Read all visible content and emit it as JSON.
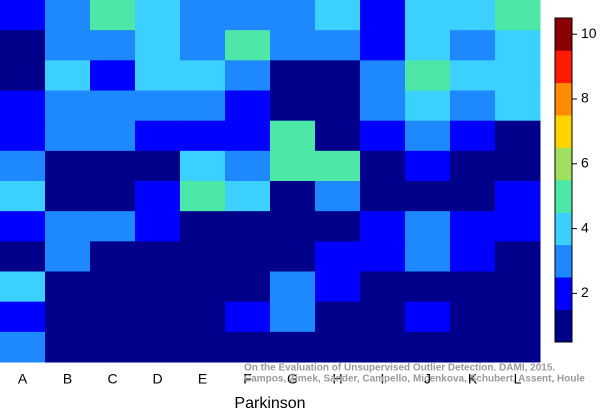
{
  "chart_data": {
    "type": "heatmap",
    "categories": [
      "A",
      "B",
      "C",
      "D",
      "E",
      "F",
      "G",
      "H",
      "I",
      "J",
      "K",
      "L"
    ],
    "values": [
      [
        2,
        3,
        5,
        4,
        3,
        3,
        3,
        4,
        2,
        4,
        4,
        5
      ],
      [
        1,
        3,
        3,
        4,
        3,
        5,
        3,
        3,
        2,
        4,
        3,
        4
      ],
      [
        1,
        4,
        2,
        4,
        4,
        3,
        1,
        1,
        3,
        5,
        4,
        4
      ],
      [
        2,
        3,
        3,
        3,
        3,
        2,
        1,
        1,
        3,
        4,
        3,
        4
      ],
      [
        2,
        3,
        3,
        2,
        2,
        2,
        5,
        1,
        2,
        3,
        2,
        1
      ],
      [
        3,
        1,
        1,
        1,
        4,
        3,
        5,
        5,
        1,
        2,
        1,
        1
      ],
      [
        4,
        1,
        1,
        2,
        5,
        4,
        1,
        3,
        1,
        1,
        1,
        2
      ],
      [
        2,
        3,
        3,
        2,
        1,
        1,
        1,
        1,
        2,
        3,
        2,
        2
      ],
      [
        1,
        3,
        1,
        1,
        1,
        1,
        1,
        2,
        2,
        3,
        2,
        1
      ],
      [
        4,
        1,
        1,
        1,
        1,
        1,
        3,
        2,
        1,
        1,
        1,
        1
      ],
      [
        2,
        1,
        1,
        1,
        1,
        2,
        3,
        1,
        1,
        2,
        1,
        1
      ],
      [
        3,
        1,
        1,
        1,
        1,
        1,
        1,
        1,
        1,
        1,
        1,
        1
      ]
    ],
    "zlim": [
      1,
      10
    ],
    "colors": [
      "#00008b",
      "#0000ff",
      "#1e88ff",
      "#3cd0ff",
      "#4de8a8",
      "#a0e060",
      "#ffd400",
      "#ff8c00",
      "#ff1a00",
      "#8b0000"
    ],
    "colorbar_ticks": [
      2,
      4,
      6,
      8,
      10
    ],
    "xlabel": "Parkinson",
    "annotation": [
      "On the Evaluation of Unsupervised Outlier Detection. DAMI, 2015.",
      "Campos, Zimek, Sander, Campello, Micenkova, Schubert, Assent, Houle"
    ]
  }
}
